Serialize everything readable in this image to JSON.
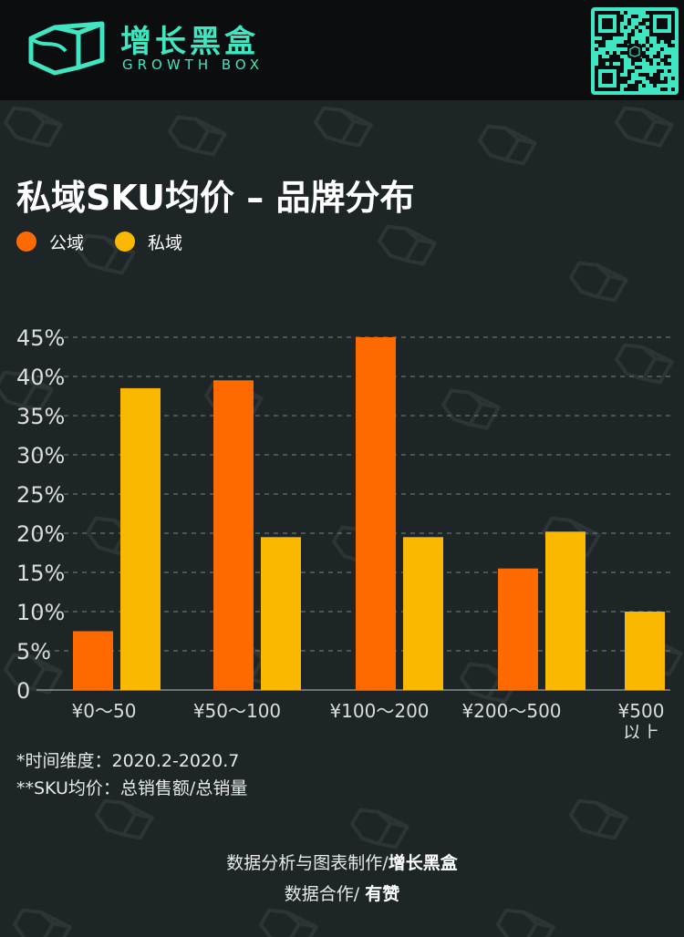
{
  "header": {
    "brand_cn": "增长黑盒",
    "brand_en": "GROWTH BOX"
  },
  "title": "私域SKU均价 – 品牌分布",
  "legend": [
    {
      "label": "公域",
      "color": "#ff6a00"
    },
    {
      "label": "私域",
      "color": "#fbb800"
    }
  ],
  "chart_data": {
    "type": "bar",
    "title": "私域SKU均价 – 品牌分布",
    "categories": [
      [
        "¥0～50"
      ],
      [
        "¥50～100"
      ],
      [
        "¥100～200"
      ],
      [
        "¥200～500"
      ],
      [
        "¥500",
        "以上"
      ]
    ],
    "series": [
      {
        "name": "公域",
        "color": "#ff6a00",
        "values": [
          7.5,
          39.5,
          45,
          15.5,
          0
        ]
      },
      {
        "name": "私域",
        "color": "#fbb800",
        "values": [
          38.5,
          19.5,
          19.5,
          20.2,
          10
        ]
      }
    ],
    "y_ticks": [
      "45%",
      "40%",
      "35%",
      "30%",
      "25%",
      "20%",
      "15%",
      "10%",
      "5%",
      "0"
    ],
    "ylim": [
      0,
      45
    ],
    "grid": true,
    "legend_position": "top-left"
  },
  "notes": {
    "time_range": "*时间维度：2020.2-2020.7",
    "definition": "**SKU均价：总销售额/总销量"
  },
  "credits": {
    "analysis_prefix": "数据分析与图表制作/",
    "analysis_brand": "增长黑盒",
    "partner_prefix": "数据合作/ ",
    "partner_name": "有赞"
  }
}
